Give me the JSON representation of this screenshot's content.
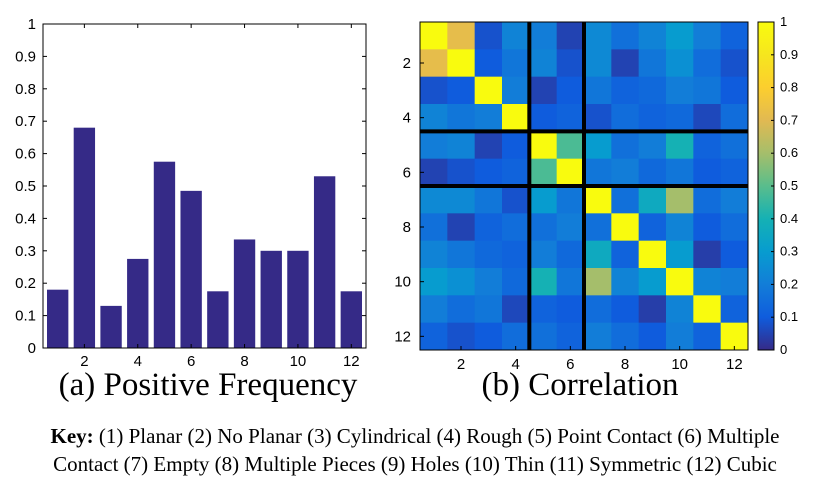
{
  "colors": {
    "bar": "#352a87",
    "axis": "#000000",
    "divider": "#000000"
  },
  "chart_data": [
    {
      "type": "bar",
      "title": "(a) Positive Frequency",
      "xlabel": "",
      "ylabel": "",
      "categories": [
        "1",
        "2",
        "3",
        "4",
        "5",
        "6",
        "7",
        "8",
        "9",
        "10",
        "11",
        "12"
      ],
      "values": [
        0.18,
        0.68,
        0.13,
        0.275,
        0.575,
        0.485,
        0.175,
        0.335,
        0.3,
        0.3,
        0.53,
        0.175
      ],
      "xtick_labels": [
        "2",
        "4",
        "6",
        "8",
        "10",
        "12"
      ],
      "ytick_labels": [
        "0",
        "0.1",
        "0.2",
        "0.3",
        "0.4",
        "0.5",
        "0.6",
        "0.7",
        "0.8",
        "0.9",
        "1"
      ],
      "ylim": [
        0,
        1
      ],
      "grid": false
    },
    {
      "type": "heatmap",
      "title": "(b) Correlation",
      "colormap": "parula",
      "clim": [
        0,
        1
      ],
      "x_categories": [
        "1",
        "2",
        "3",
        "4",
        "5",
        "6",
        "7",
        "8",
        "9",
        "10",
        "11",
        "12"
      ],
      "y_categories": [
        "1",
        "2",
        "3",
        "4",
        "5",
        "6",
        "7",
        "8",
        "9",
        "10",
        "11",
        "12"
      ],
      "xtick_labels": [
        "2",
        "4",
        "6",
        "8",
        "10",
        "12"
      ],
      "ytick_labels": [
        "2",
        "4",
        "6",
        "8",
        "10",
        "12"
      ],
      "colorbar_ticks": [
        "0",
        "0.1",
        "0.2",
        "0.3",
        "0.4",
        "0.5",
        "0.6",
        "0.7",
        "0.8",
        "0.9",
        "1"
      ],
      "group_dividers_after": [
        4,
        6
      ],
      "matrix": [
        [
          1.0,
          0.72,
          0.08,
          0.22,
          0.2,
          0.05,
          0.24,
          0.16,
          0.22,
          0.3,
          0.2,
          0.12
        ],
        [
          0.72,
          1.0,
          0.1,
          0.18,
          0.22,
          0.08,
          0.24,
          0.05,
          0.18,
          0.26,
          0.15,
          0.08
        ],
        [
          0.08,
          0.1,
          1.0,
          0.2,
          0.05,
          0.1,
          0.18,
          0.12,
          0.14,
          0.2,
          0.18,
          0.1
        ],
        [
          0.22,
          0.18,
          0.2,
          1.0,
          0.1,
          0.12,
          0.08,
          0.15,
          0.12,
          0.14,
          0.06,
          0.15
        ],
        [
          0.2,
          0.22,
          0.05,
          0.1,
          1.0,
          0.48,
          0.3,
          0.16,
          0.2,
          0.4,
          0.12,
          0.16
        ],
        [
          0.05,
          0.08,
          0.1,
          0.12,
          0.48,
          1.0,
          0.18,
          0.2,
          0.14,
          0.18,
          0.1,
          0.12
        ],
        [
          0.24,
          0.24,
          0.18,
          0.08,
          0.3,
          0.18,
          1.0,
          0.16,
          0.36,
          0.6,
          0.15,
          0.2
        ],
        [
          0.16,
          0.05,
          0.12,
          0.15,
          0.16,
          0.2,
          0.16,
          1.0,
          0.12,
          0.22,
          0.1,
          0.15
        ],
        [
          0.22,
          0.18,
          0.14,
          0.12,
          0.2,
          0.14,
          0.36,
          0.12,
          1.0,
          0.3,
          0.04,
          0.1
        ],
        [
          0.3,
          0.26,
          0.2,
          0.14,
          0.4,
          0.18,
          0.6,
          0.22,
          0.3,
          1.0,
          0.22,
          0.2
        ],
        [
          0.2,
          0.15,
          0.18,
          0.06,
          0.12,
          0.1,
          0.15,
          0.1,
          0.04,
          0.22,
          1.0,
          0.12
        ],
        [
          0.12,
          0.08,
          0.1,
          0.15,
          0.16,
          0.12,
          0.2,
          0.15,
          0.1,
          0.2,
          0.12,
          1.0
        ]
      ]
    }
  ],
  "key": {
    "label": "Key:",
    "line1": "(1) Planar (2) No Planar (3) Cylindrical (4) Rough (5) Point Contact (6) Multiple",
    "line2": "Contact (7) Empty (8) Multiple Pieces (9) Holes (10) Thin (11) Symmetric (12) Cubic"
  }
}
